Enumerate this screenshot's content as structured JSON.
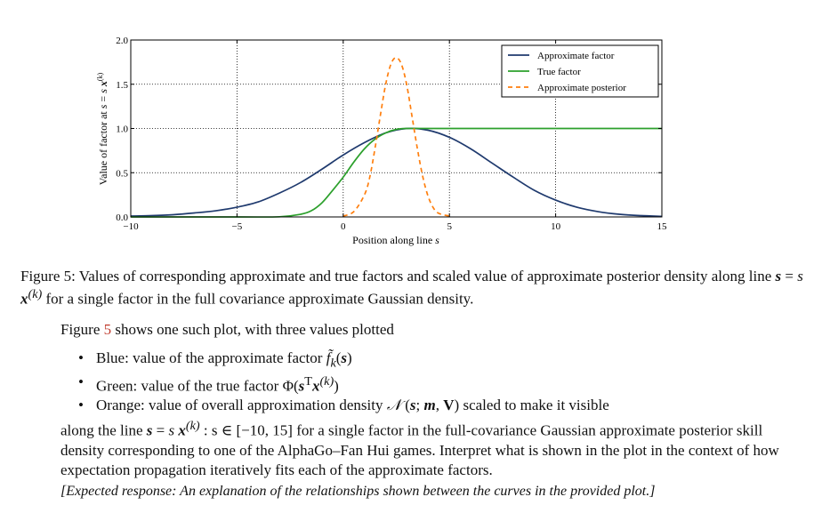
{
  "chart_data": {
    "type": "line",
    "xlabel": "Position along line s",
    "ylabel": "Value of factor at s = s x(k)",
    "xlim": [
      -10,
      15
    ],
    "ylim": [
      0,
      2
    ],
    "x_ticks": [
      "−10",
      "−5",
      "0",
      "5",
      "10",
      "15"
    ],
    "y_ticks": [
      "0.0",
      "0.5",
      "1.0",
      "1.5",
      "2.0"
    ],
    "x_tick_values": [
      -10,
      -5,
      0,
      5,
      10,
      15
    ],
    "y_tick_values": [
      0,
      0.5,
      1.0,
      1.5,
      2.0
    ],
    "grid": true,
    "legend_position": "top-right",
    "series": [
      {
        "name": "Approximate factor",
        "color": "#1f3a6e",
        "style": "solid",
        "x": [
          -10,
          -9,
          -8,
          -7,
          -6,
          -5,
          -4,
          -3,
          -2,
          -1,
          0,
          1,
          2,
          3,
          4,
          5,
          6,
          7,
          8,
          9,
          10,
          11,
          12,
          13,
          14,
          15
        ],
        "y": [
          0.01,
          0.015,
          0.025,
          0.045,
          0.07,
          0.11,
          0.17,
          0.27,
          0.39,
          0.54,
          0.7,
          0.84,
          0.95,
          1.0,
          0.98,
          0.9,
          0.77,
          0.61,
          0.45,
          0.3,
          0.19,
          0.11,
          0.06,
          0.03,
          0.015,
          0.007
        ]
      },
      {
        "name": "True factor",
        "color": "#2ca02c",
        "style": "solid",
        "x": [
          -10,
          -5,
          -3,
          -2,
          -1.5,
          -1,
          -0.5,
          0,
          0.5,
          1,
          1.5,
          2,
          2.5,
          3,
          4,
          5,
          10,
          15
        ],
        "y": [
          0,
          0,
          0.002,
          0.03,
          0.07,
          0.16,
          0.3,
          0.45,
          0.62,
          0.77,
          0.88,
          0.95,
          0.99,
          1.0,
          1.0,
          1.0,
          1.0,
          1.0
        ]
      },
      {
        "name": "Approximate posterior",
        "color": "#ff7f0e",
        "style": "dashed",
        "x": [
          0,
          0.5,
          1,
          1.25,
          1.5,
          1.75,
          2,
          2.25,
          2.5,
          2.75,
          3,
          3.25,
          3.5,
          3.75,
          4,
          4.25,
          4.5,
          5
        ],
        "y": [
          0.01,
          0.06,
          0.25,
          0.45,
          0.78,
          1.15,
          1.5,
          1.73,
          1.8,
          1.72,
          1.48,
          1.12,
          0.76,
          0.45,
          0.23,
          0.1,
          0.04,
          0.01
        ]
      }
    ]
  },
  "caption": {
    "prefix": "Figure 5:",
    "text1": " Values of corresponding approximate and true factors and scaled value of approximate posterior density along line ",
    "text2": " for a single factor in the full covariance approximate Gaussian density."
  },
  "intro": {
    "before": "Figure ",
    "ref": "5",
    "after": " shows one such plot, with three values plotted"
  },
  "bullets": [
    {
      "label": "Blue:",
      "text": " value of the approximate factor "
    },
    {
      "label": "Green:",
      "text": " value of the true factor "
    },
    {
      "label": "Orange:",
      "text": " value of overall approximation density "
    }
  ],
  "bullet3_tail": " scaled to make it visible",
  "paragraph": {
    "lead": "along the line ",
    "range": " : s ∈ [−10, 15]",
    "rest": " for a single factor in the full-covariance Gaussian approximate posterior skill density corresponding to one of the AlphaGo–Fan Hui games. Interpret what is shown in the plot in the context of how expectation propagation iteratively fits each of the approximate factors."
  },
  "expected": "[Expected response: An explanation of the relationships shown between the curves in the provided plot.]"
}
